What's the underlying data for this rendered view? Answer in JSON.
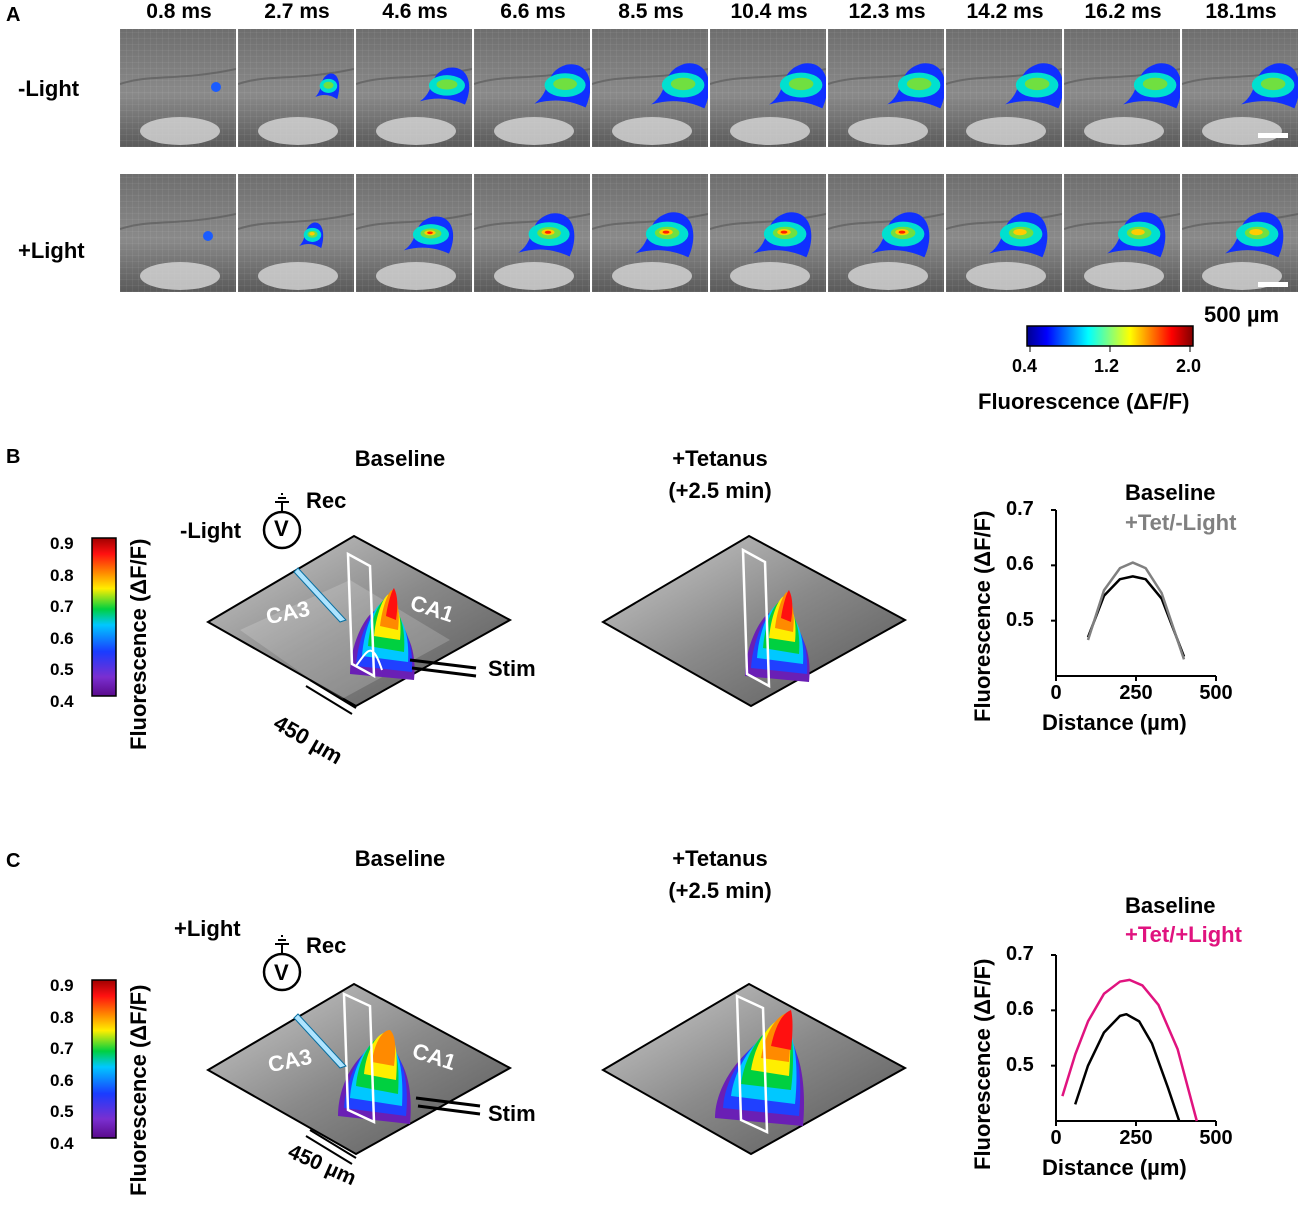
{
  "panel_a": {
    "letter": "A",
    "times": [
      "0.8 ms",
      "2.7 ms",
      "4.6 ms",
      "6.6 ms",
      "8.5 ms",
      "10.4 ms",
      "12.3 ms",
      "14.2 ms",
      "16.2 ms",
      "18.1ms"
    ],
    "rows": [
      "-Light",
      "+Light"
    ],
    "scale_bar": "500 µm",
    "colorbar": {
      "ticks": [
        "0.4",
        "1.2",
        "2.0"
      ],
      "label": "Fluorescence (ΔF/F)"
    }
  },
  "panel_b": {
    "letter": "B",
    "baseline_title": "Baseline",
    "tetanus_title": "+Tetanus",
    "tetanus_sub": "(+2.5 min)",
    "condition": "-Light",
    "rec": "Rec",
    "volt": "V",
    "ca3": "CA3",
    "ca1": "CA1",
    "stim": "Stim",
    "scale": "450 µm",
    "colorbar": {
      "ticks": [
        "0.9",
        "0.8",
        "0.7",
        "0.6",
        "0.5",
        "0.4"
      ],
      "label": "Fluorescence (ΔF/F)"
    }
  },
  "panel_c": {
    "letter": "C",
    "baseline_title": "Baseline",
    "tetanus_title": "+Tetanus",
    "tetanus_sub": "(+2.5 min)",
    "condition": "+Light",
    "rec": "Rec",
    "volt": "V",
    "ca3": "CA3",
    "ca1": "CA1",
    "stim": "Stim",
    "scale": "450 µm",
    "colorbar": {
      "ticks": [
        "0.9",
        "0.8",
        "0.7",
        "0.6",
        "0.5",
        "0.4"
      ],
      "label": "Fluorescence (ΔF/F)"
    }
  },
  "chart_data": [
    {
      "type": "line",
      "panel": "B",
      "xlabel": "Distance (µm)",
      "ylabel": "Fluorescence (ΔF/F)",
      "xlim": [
        0,
        500
      ],
      "ylim": [
        0.4,
        0.7
      ],
      "xticks": [
        "0",
        "250",
        "500"
      ],
      "yticks": [
        "0.7",
        "0.6",
        "0.5"
      ],
      "series": [
        {
          "name": "Baseline",
          "color": "#000000",
          "x": [
            100,
            150,
            200,
            240,
            280,
            330,
            400
          ],
          "y": [
            0.47,
            0.545,
            0.575,
            0.58,
            0.575,
            0.54,
            0.435
          ]
        },
        {
          "name": "+Tet/-Light",
          "color": "#808080",
          "x": [
            100,
            150,
            200,
            240,
            280,
            330,
            400
          ],
          "y": [
            0.465,
            0.555,
            0.595,
            0.605,
            0.595,
            0.55,
            0.43
          ]
        }
      ]
    },
    {
      "type": "line",
      "panel": "C",
      "xlabel": "Distance (µm)",
      "ylabel": "Fluorescence (ΔF/F)",
      "xlim": [
        0,
        500
      ],
      "ylim": [
        0.4,
        0.7
      ],
      "xticks": [
        "0",
        "250",
        "500"
      ],
      "yticks": [
        "0.7",
        "0.6",
        "0.5"
      ],
      "series": [
        {
          "name": "Baseline",
          "color": "#000000",
          "x": [
            60,
            100,
            150,
            200,
            220,
            260,
            300,
            350,
            385
          ],
          "y": [
            0.43,
            0.5,
            0.56,
            0.59,
            0.593,
            0.58,
            0.54,
            0.46,
            0.4
          ]
        },
        {
          "name": "+Tet/+Light",
          "color": "#e0137f",
          "x": [
            20,
            60,
            100,
            150,
            200,
            230,
            270,
            320,
            380,
            440
          ],
          "y": [
            0.445,
            0.52,
            0.58,
            0.63,
            0.652,
            0.655,
            0.645,
            0.61,
            0.53,
            0.4
          ]
        }
      ]
    }
  ]
}
